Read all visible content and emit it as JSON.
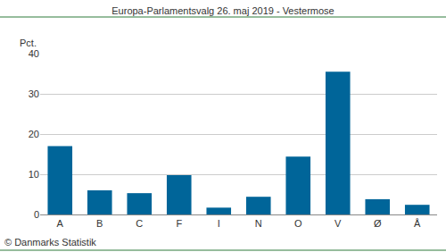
{
  "chart_data": {
    "type": "bar",
    "title": "Europa-Parlamentsvalg 26. maj 2019 - Vestermose",
    "y_label": "Pct.",
    "source": "© Danmarks Statistik",
    "categories": [
      "A",
      "B",
      "C",
      "F",
      "I",
      "N",
      "O",
      "V",
      "Ø",
      "Å"
    ],
    "values": [
      17.0,
      6.0,
      5.3,
      9.8,
      1.7,
      4.4,
      14.4,
      35.5,
      3.8,
      2.4
    ],
    "color": "#006599",
    "ylim": [
      0,
      40
    ],
    "yticks": [
      0,
      10,
      20,
      30,
      40
    ],
    "grid": true
  }
}
